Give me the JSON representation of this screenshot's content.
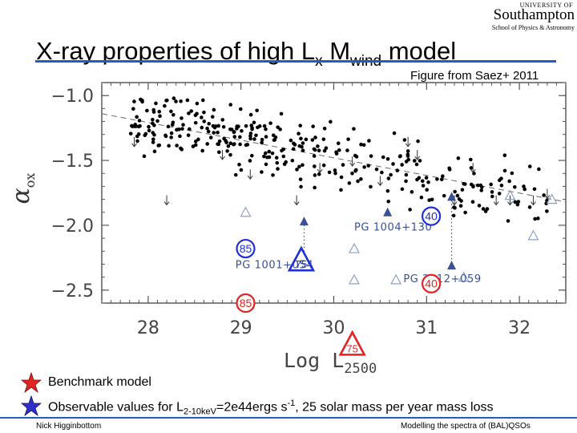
{
  "logo": {
    "university": "UNIVERSITY OF",
    "name": "Southampton",
    "school": "School of Physics & Astronomy"
  },
  "slide": {
    "title_main": "X-ray properties of high L",
    "title_sub1": "x",
    "title_mid": " M",
    "title_sub2": "wind",
    "title_end": " model",
    "credit": "Figure from Saez+ 2011"
  },
  "legend": {
    "benchmark": "Benchmark model",
    "observable_prefix": "Observable values for L",
    "observable_sub": "2-10keV",
    "observable_mid": "=2e44ergs s",
    "observable_sup": "-1",
    "observable_suffix": ", 25 solar mass per year mass loss"
  },
  "footer": {
    "author": "Nick Higginbottom",
    "title": "Modelling the spectra of (BAL)QSOs"
  },
  "colors": {
    "accent": "#1f5fbf",
    "benchmark": "#e32222",
    "observable": "#1f2fd8",
    "triangle": "#3a4f96"
  },
  "chart_data": {
    "type": "scatter",
    "xlabel": "Log L",
    "xlabel_sub": "2500",
    "ylabel": "α",
    "ylabel_sub": "ox",
    "xlim": [
      27.5,
      32.5
    ],
    "ylim": [
      -2.6,
      -0.9
    ],
    "xticks": [
      {
        "v": 28,
        "label": "28"
      },
      {
        "v": 29,
        "label": "29"
      },
      {
        "v": 30,
        "label": "30"
      },
      {
        "v": 31,
        "label": "31"
      },
      {
        "v": 32,
        "label": "32"
      }
    ],
    "yticks": [
      {
        "v": -1.0,
        "label": "−1.0"
      },
      {
        "v": -1.5,
        "label": "−1.5"
      },
      {
        "v": -2.0,
        "label": "−2.0"
      },
      {
        "v": -2.5,
        "label": "−2.5"
      }
    ],
    "trend_line": [
      [
        27.5,
        -1.14
      ],
      [
        32.5,
        -1.82
      ]
    ],
    "upper_limits": [
      [
        27.85,
        -1.35
      ],
      [
        28.2,
        -1.8
      ],
      [
        28.8,
        -1.45
      ],
      [
        29.1,
        -1.6
      ],
      [
        29.6,
        -1.8
      ],
      [
        29.85,
        -1.55
      ],
      [
        30.2,
        -1.5
      ],
      [
        30.5,
        -1.65
      ],
      [
        30.9,
        -1.45
      ],
      [
        31.3,
        -1.8
      ],
      [
        31.5,
        -1.55
      ],
      [
        31.75,
        -1.8
      ],
      [
        31.9,
        -1.8
      ],
      [
        32.3,
        -1.75
      ],
      [
        32.15,
        -1.8
      ],
      [
        30.8,
        -1.35
      ]
    ],
    "filled_triangles": [
      {
        "x": 29.68,
        "y": -1.97,
        "label": ""
      },
      {
        "x": 30.58,
        "y": -1.9,
        "label": "PG 1004+130"
      },
      {
        "x": 31.27,
        "y": -1.78,
        "label": ""
      },
      {
        "x": 31.27,
        "y": -2.31,
        "label": "PG 2112+059"
      }
    ],
    "pg_labels": [
      {
        "text": "PG 1004+130",
        "x": 30.22,
        "y": -2.04
      },
      {
        "text": "PG 1001+054",
        "x": 28.94,
        "y": -2.33
      },
      {
        "text": "PG 2112+059",
        "x": 30.75,
        "y": -2.44
      }
    ],
    "open_triangles": [
      [
        29.05,
        -1.9
      ],
      [
        30.22,
        -2.18
      ],
      [
        30.22,
        -2.42
      ],
      [
        30.67,
        -2.42
      ],
      [
        31.4,
        -2.4
      ],
      [
        31.9,
        -1.77
      ],
      [
        32.15,
        -2.08
      ],
      [
        32.35,
        -1.8
      ]
    ],
    "series": [
      {
        "name": "Benchmark model",
        "kind": "circle",
        "x": 29.05,
        "y": -2.6,
        "label": "85",
        "color": "#e32222"
      },
      {
        "name": "Benchmark model",
        "kind": "triangle",
        "x": 30.2,
        "y": -2.93,
        "label": "75",
        "color": "#e32222"
      },
      {
        "name": "Benchmark model",
        "kind": "circle",
        "x": 31.05,
        "y": -2.45,
        "label": "40",
        "color": "#e32222"
      },
      {
        "name": "Observable model",
        "kind": "circle",
        "x": 29.05,
        "y": -2.18,
        "label": "85",
        "color": "#1f2fd8"
      },
      {
        "name": "Observable model",
        "kind": "triangle",
        "x": 29.65,
        "y": -2.28,
        "label": "75",
        "color": "#1f2fd8"
      },
      {
        "name": "Observable model",
        "kind": "circle",
        "x": 31.05,
        "y": -1.93,
        "label": "40",
        "color": "#1f2fd8"
      }
    ]
  }
}
